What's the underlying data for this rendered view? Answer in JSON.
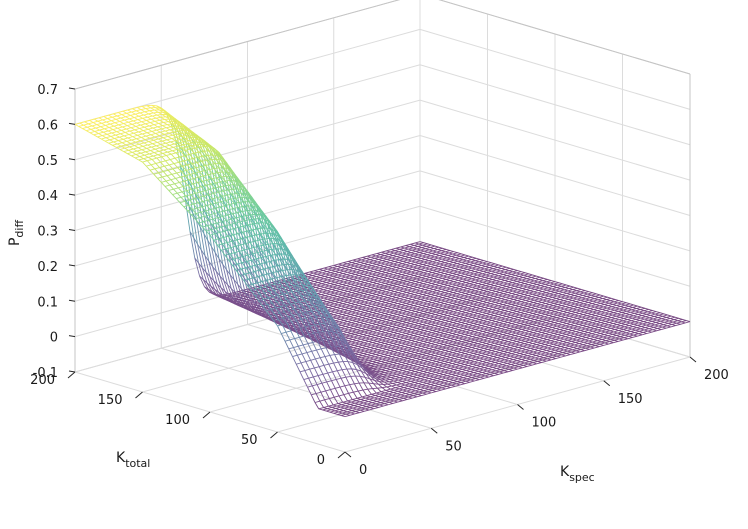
{
  "chart_data": {
    "type": "surface",
    "title": "",
    "xlabel": {
      "main": "K",
      "sub": "spec"
    },
    "ylabel": {
      "main": "K",
      "sub": "total"
    },
    "zlabel": {
      "main": "P",
      "sub": "diff"
    },
    "x_ticks": [
      "0",
      "50",
      "100",
      "150",
      "200"
    ],
    "y_ticks": [
      "0",
      "50",
      "100",
      "150",
      "200"
    ],
    "z_ticks": [
      "-0.1",
      "0",
      "0.1",
      "0.2",
      "0.3",
      "0.4",
      "0.5",
      "0.6",
      "0.7"
    ],
    "xlim": [
      0,
      200
    ],
    "ylim": [
      0,
      200
    ],
    "zlim": [
      -0.1,
      0.7
    ],
    "grid": true,
    "colormap": "viridis",
    "surface_samples": {
      "description_of_axes": "x = K_spec, y = K_total, z = P_diff",
      "points": [
        {
          "x": 0,
          "y": 200,
          "z": 0.6
        },
        {
          "x": 0,
          "y": 150,
          "z": 0.55
        },
        {
          "x": 0,
          "y": 100,
          "z": 0.4
        },
        {
          "x": 0,
          "y": 50,
          "z": 0.2
        },
        {
          "x": 0,
          "y": 20,
          "z": 0.0
        },
        {
          "x": 0,
          "y": 0,
          "z": 0.0
        },
        {
          "x": 25,
          "y": 200,
          "z": 0.59
        },
        {
          "x": 25,
          "y": 100,
          "z": 0.35
        },
        {
          "x": 25,
          "y": 30,
          "z": 0.02
        },
        {
          "x": 50,
          "y": 200,
          "z": 0.25
        },
        {
          "x": 50,
          "y": 150,
          "z": 0.1
        },
        {
          "x": 50,
          "y": 60,
          "z": 0.0
        },
        {
          "x": 100,
          "y": 200,
          "z": 0.0
        },
        {
          "x": 200,
          "y": 200,
          "z": 0.0
        },
        {
          "x": 200,
          "y": 0,
          "z": 0.0
        }
      ]
    }
  }
}
